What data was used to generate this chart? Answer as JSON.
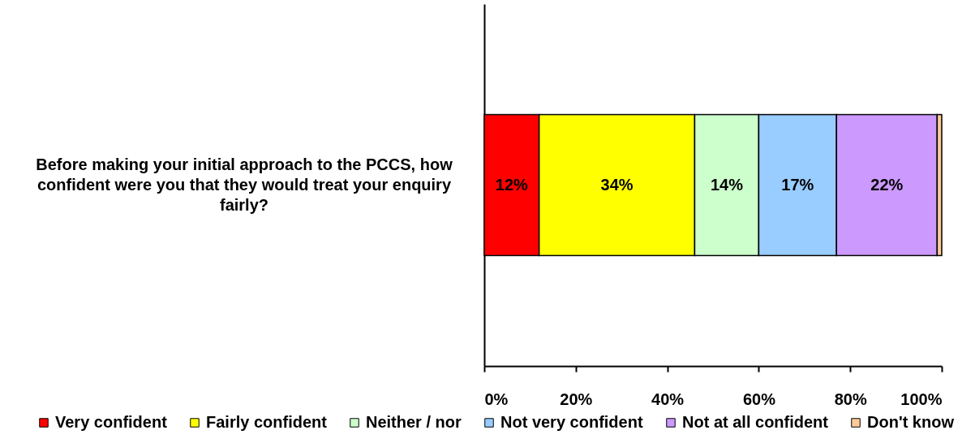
{
  "chart_data": {
    "type": "bar",
    "orientation": "horizontal",
    "stacked": true,
    "categories": [
      "Before making your initial approach to the PCCS, how confident were you that they would treat your enquiry fairly?"
    ],
    "series": [
      {
        "name": "Very confident",
        "color": "#ff0000",
        "values": [
          12
        ],
        "value_labels": [
          "12%"
        ]
      },
      {
        "name": "Fairly confident",
        "color": "#ffff00",
        "values": [
          34
        ],
        "value_labels": [
          "34%"
        ]
      },
      {
        "name": "Neither / nor",
        "color": "#ccffcc",
        "values": [
          14
        ],
        "value_labels": [
          "14%"
        ]
      },
      {
        "name": "Not very confident",
        "color": "#99ccff",
        "values": [
          17
        ],
        "value_labels": [
          "17%"
        ]
      },
      {
        "name": "Not at all confident",
        "color": "#cc99ff",
        "values": [
          22
        ],
        "value_labels": [
          "22%"
        ]
      },
      {
        "name": "Don't know",
        "color": "#ffcc99",
        "values": [
          1
        ],
        "value_labels": [
          null
        ]
      }
    ],
    "xlim": [
      0,
      100
    ],
    "xticks": [
      {
        "value": 0,
        "label": "0%"
      },
      {
        "value": 20,
        "label": "20%"
      },
      {
        "value": 40,
        "label": "40%"
      },
      {
        "value": 60,
        "label": "60%"
      },
      {
        "value": 80,
        "label": "80%"
      },
      {
        "value": 100,
        "label": "100%"
      }
    ],
    "grid": false,
    "legend": "bottom"
  }
}
